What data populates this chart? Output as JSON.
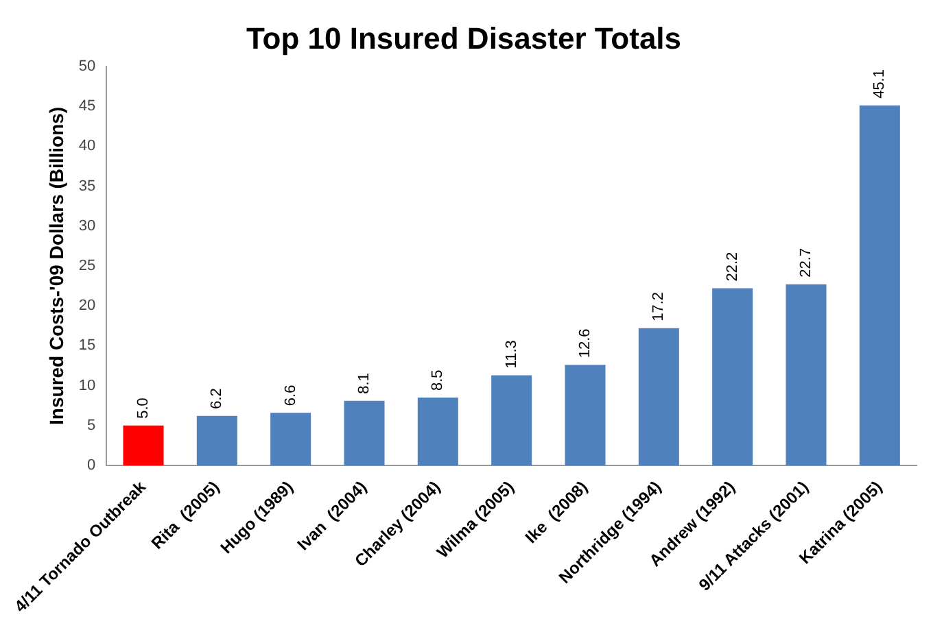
{
  "chart_data": {
    "type": "bar",
    "title": "Top 10 Insured Disaster Totals",
    "ylabel": "Insured Costs-'09 Dollars (Billions)",
    "categories": [
      "4/11 Tornado Outbreak",
      "Rita  (2005)",
      "Hugo (1989)",
      "Ivan  (2004)",
      "Charley (2004)",
      "Wilma (2005)",
      "Ike  (2008)",
      "Northridge (1994)",
      "Andrew (1992)",
      "9/11 Attacks (2001)",
      "Katrina (2005)"
    ],
    "values": [
      5.0,
      6.2,
      6.6,
      8.1,
      8.5,
      11.3,
      12.6,
      17.2,
      22.2,
      22.7,
      45.1
    ],
    "colors": [
      "#ff0000",
      "#4f81bd",
      "#4f81bd",
      "#4f81bd",
      "#4f81bd",
      "#4f81bd",
      "#4f81bd",
      "#4f81bd",
      "#4f81bd",
      "#4f81bd",
      "#4f81bd"
    ],
    "value_labels": [
      "5.0",
      "6.2",
      "6.6",
      "8.1",
      "8.5",
      "11.3",
      "12.6",
      "17.2",
      "22.2",
      "22.7",
      "45.1"
    ],
    "ylim": [
      0,
      50
    ],
    "yticks": [
      0,
      5,
      10,
      15,
      20,
      25,
      30,
      35,
      40,
      45,
      50
    ],
    "grid": false,
    "legend": false
  }
}
